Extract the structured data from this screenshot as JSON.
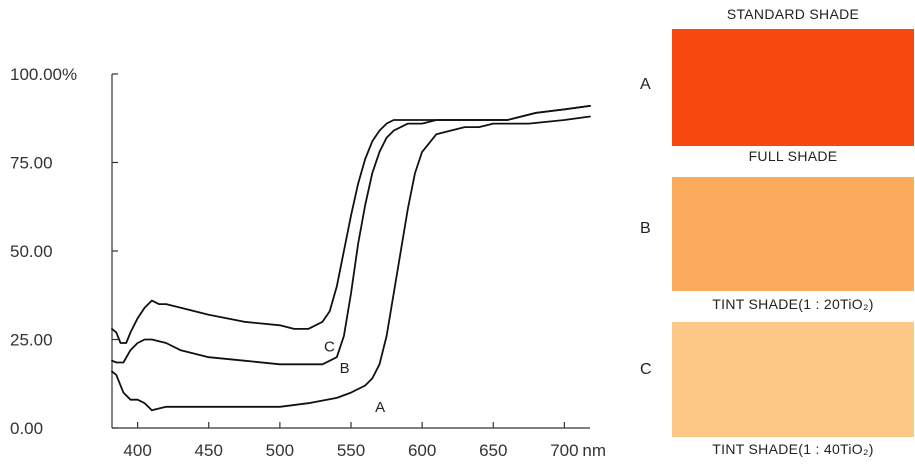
{
  "chart_data": {
    "type": "line",
    "title": "",
    "xlabel": "",
    "ylabel": "",
    "xlim": [
      382,
      718
    ],
    "ylim": [
      0,
      100
    ],
    "grid": false,
    "y_ticks": [
      {
        "value": 0,
        "label": "0.00"
      },
      {
        "value": 25,
        "label": "25.00"
      },
      {
        "value": 50,
        "label": "50.00"
      },
      {
        "value": 75,
        "label": "75.00"
      },
      {
        "value": 100,
        "label": "100.00%"
      }
    ],
    "x_ticks": [
      {
        "value": 400,
        "label": "400"
      },
      {
        "value": 450,
        "label": "450"
      },
      {
        "value": 500,
        "label": "500"
      },
      {
        "value": 550,
        "label": "550"
      },
      {
        "value": 600,
        "label": "600"
      },
      {
        "value": 650,
        "label": "650"
      },
      {
        "value": 700,
        "label": "700"
      }
    ],
    "x_unit_label": "nm",
    "series": [
      {
        "name": "A",
        "color": "#111111",
        "label_at": {
          "x": 567,
          "y": 6
        },
        "x": [
          382,
          385,
          390,
          395,
          400,
          405,
          410,
          420,
          430,
          450,
          475,
          500,
          520,
          540,
          550,
          560,
          565,
          570,
          575,
          580,
          585,
          590,
          595,
          600,
          610,
          620,
          630,
          640,
          650,
          660,
          675,
          700,
          718
        ],
        "y": [
          16,
          15,
          10,
          8,
          8,
          7,
          5,
          6,
          6,
          6,
          6,
          6,
          7,
          8.5,
          10,
          12,
          14,
          18,
          26,
          38,
          50,
          62,
          72,
          78,
          83,
          84,
          85,
          85,
          86,
          86,
          86,
          87,
          88
        ]
      },
      {
        "name": "B",
        "color": "#111111",
        "label_at": {
          "x": 542,
          "y": 17
        },
        "x": [
          382,
          385,
          390,
          395,
          400,
          405,
          410,
          420,
          430,
          450,
          475,
          500,
          510,
          520,
          530,
          540,
          545,
          550,
          555,
          560,
          565,
          570,
          575,
          580,
          590,
          600,
          610,
          620,
          640,
          660,
          680,
          700,
          718
        ],
        "y": [
          19,
          18.5,
          18.5,
          22,
          24,
          25,
          25,
          24,
          22,
          20,
          19,
          18,
          18,
          18,
          18,
          20,
          26,
          38,
          52,
          63,
          72,
          78,
          82,
          84,
          86,
          86,
          87,
          87,
          87,
          87,
          89,
          90,
          91
        ]
      },
      {
        "name": "C",
        "color": "#111111",
        "label_at": {
          "x": 531,
          "y": 23
        },
        "x": [
          382,
          385,
          388,
          392,
          395,
          400,
          405,
          410,
          415,
          420,
          430,
          450,
          475,
          500,
          510,
          520,
          530,
          535,
          540,
          545,
          550,
          555,
          560,
          565,
          570,
          575,
          580,
          590,
          600,
          620,
          640,
          660,
          680,
          700,
          718
        ],
        "y": [
          28,
          27,
          24,
          24,
          27,
          31,
          34,
          36,
          35,
          35,
          34,
          32,
          30,
          29,
          28,
          28,
          30,
          33,
          40,
          50,
          60,
          69,
          76,
          81,
          84,
          86,
          87,
          87,
          87,
          87,
          87,
          87,
          89,
          90,
          91
        ]
      }
    ]
  },
  "swatches": {
    "standard_heading": "STANDARD SHADE",
    "full_heading": "FULL SHADE",
    "tint20_heading": "TINT SHADE(1 : 20TiO₂)",
    "tint40_heading": "TINT SHADE(1 : 40TiO₂)",
    "items": [
      {
        "letter": "A",
        "color": "#f7490f"
      },
      {
        "letter": "B",
        "color": "#fcaa5c"
      },
      {
        "letter": "C",
        "color": "#fdc885"
      }
    ]
  }
}
